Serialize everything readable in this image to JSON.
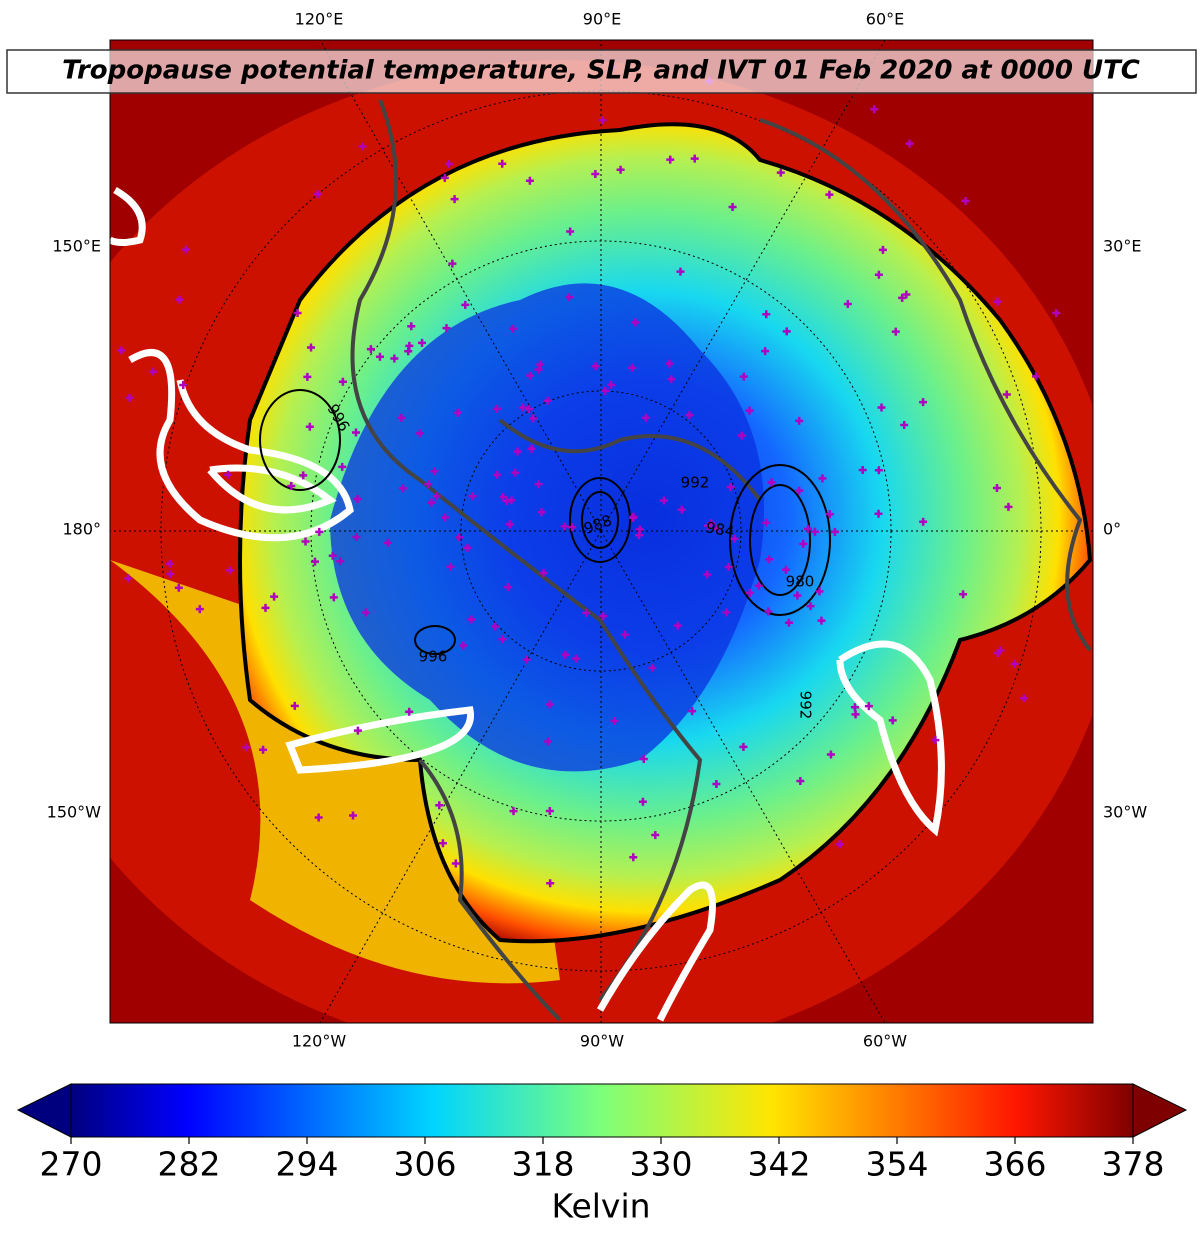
{
  "title": "Tropopause potential temperature, SLP, and IVT 01 Feb 2020 at 0000 UTC",
  "map": {
    "lon_labels": {
      "top": [
        "120°E",
        "90°E",
        "60°E"
      ],
      "left": [
        "150°E",
        "180°",
        "150°W"
      ],
      "right": [
        "30°E",
        "0°",
        "30°W"
      ],
      "bottom": [
        "120°W",
        "90°W",
        "60°W"
      ]
    },
    "contour_labels": [
      "996",
      "988",
      "992",
      "984",
      "980",
      "992",
      "996"
    ]
  },
  "colorbar": {
    "label": "Kelvin",
    "range": [
      270,
      378
    ],
    "ticks": [
      270,
      282,
      294,
      306,
      318,
      330,
      342,
      354,
      366,
      378
    ]
  }
}
